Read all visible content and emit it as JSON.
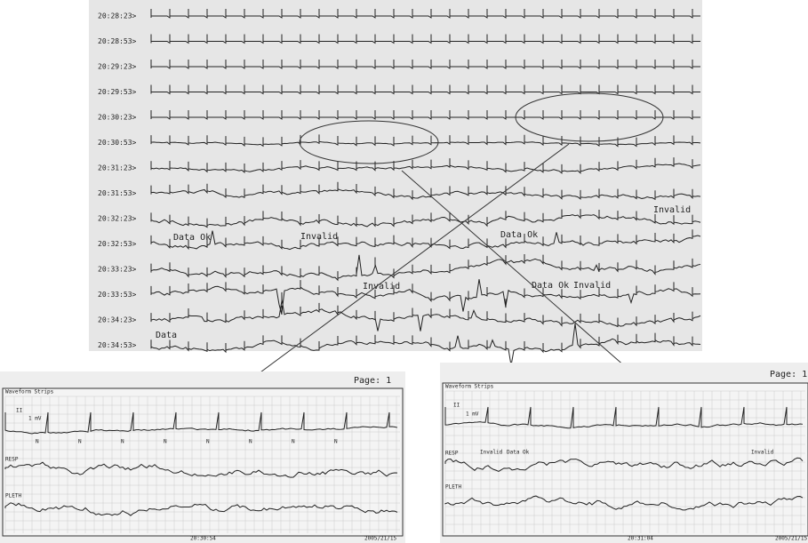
{
  "main": {
    "timestamps": [
      "20:28:23>",
      "20:28:53>",
      "20:29:23>",
      "20:29:53>",
      "20:30:23>",
      "20:30:53>",
      "20:31:23>",
      "20:31:53>",
      "20:32:23>",
      "20:32:53>",
      "20:33:23>",
      "20:33:53>",
      "20:34:23>",
      "20:34:53>"
    ],
    "annotations": [
      "Data Ok",
      "Invalid",
      "Invalid",
      "Data Ok",
      "Invalid",
      "Data Ok",
      "Invalid",
      "Data"
    ]
  },
  "left_strip": {
    "page": "Page: 1",
    "title": "Waveform Strips",
    "lead": "II",
    "scale": "1 mV",
    "beats": [
      "N",
      "N",
      "N",
      "N",
      "N",
      "N",
      "N",
      "N"
    ],
    "resp": "RESP",
    "pleth": "PLETH",
    "time": "20:30:54",
    "date": "2005/21/15"
  },
  "right_strip": {
    "page": "Page: 1",
    "title": "Waveform Strips",
    "lead": "II",
    "scale": "1 mV",
    "resp": "RESP",
    "labels": [
      "Invalid",
      "Data Ok",
      "Invalid"
    ],
    "pleth": "PLETH",
    "time": "20:31:04",
    "date": "2005/21/15"
  }
}
